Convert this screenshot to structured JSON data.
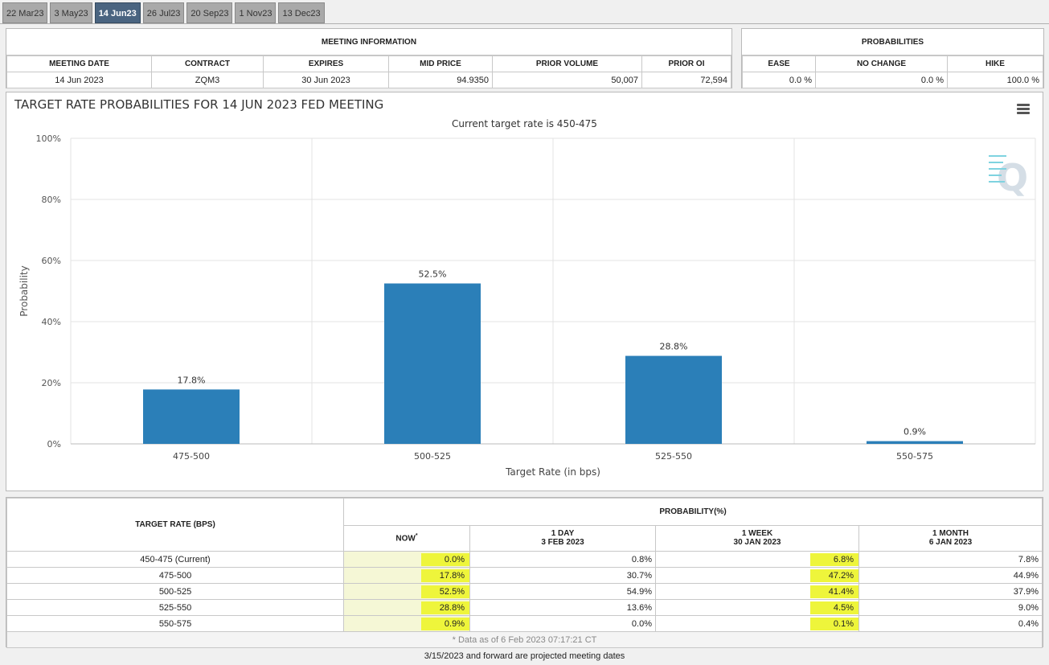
{
  "tabs": [
    {
      "label": "22 Mar23",
      "active": false
    },
    {
      "label": "3 May23",
      "active": false
    },
    {
      "label": "14 Jun23",
      "active": true
    },
    {
      "label": "26 Jul23",
      "active": false
    },
    {
      "label": "20 Sep23",
      "active": false
    },
    {
      "label": "1 Nov23",
      "active": false
    },
    {
      "label": "13 Dec23",
      "active": false
    }
  ],
  "meeting_info": {
    "title": "MEETING INFORMATION",
    "headers": [
      "MEETING DATE",
      "CONTRACT",
      "EXPIRES",
      "MID PRICE",
      "PRIOR VOLUME",
      "PRIOR OI"
    ],
    "values": [
      "14 Jun 2023",
      "ZQM3",
      "30 Jun 2023",
      "94.9350",
      "50,007",
      "72,594"
    ]
  },
  "probabilities": {
    "title": "PROBABILITIES",
    "headers": [
      "EASE",
      "NO CHANGE",
      "HIKE"
    ],
    "values": [
      "0.0 %",
      "0.0 %",
      "100.0 %"
    ]
  },
  "chart_data": {
    "type": "bar",
    "title": "TARGET RATE PROBABILITIES FOR 14 JUN 2023 FED MEETING",
    "subtitle": "Current target rate is 450-475",
    "categories": [
      "475-500",
      "500-525",
      "525-550",
      "550-575"
    ],
    "values": [
      17.8,
      52.5,
      28.8,
      0.9
    ],
    "data_labels": [
      "17.8%",
      "52.5%",
      "28.8%",
      "0.9%"
    ],
    "xlabel": "Target Rate (in bps)",
    "ylabel": "Probability",
    "ylim": [
      0,
      100
    ],
    "yticks": [
      "0%",
      "20%",
      "40%",
      "60%",
      "80%",
      "100%"
    ],
    "bar_color": "#2b7fb8",
    "grid": true,
    "legend": "none"
  },
  "prob_table": {
    "rate_header": "TARGET RATE (BPS)",
    "prob_header": "PROBABILITY(%)",
    "now_label": "NOW",
    "now_mark": "*",
    "col_1day": {
      "label": "1 DAY",
      "date": "3 FEB 2023"
    },
    "col_1week": {
      "label": "1 WEEK",
      "date": "30 JAN 2023"
    },
    "col_1month": {
      "label": "1 MONTH",
      "date": "6 JAN 2023"
    },
    "rows": [
      {
        "rate": "450-475 (Current)",
        "now": "0.0%",
        "day": "0.8%",
        "week": "6.8%",
        "month": "7.8%"
      },
      {
        "rate": "475-500",
        "now": "17.8%",
        "day": "30.7%",
        "week": "47.2%",
        "month": "44.9%"
      },
      {
        "rate": "500-525",
        "now": "52.5%",
        "day": "54.9%",
        "week": "41.4%",
        "month": "37.9%"
      },
      {
        "rate": "525-550",
        "now": "28.8%",
        "day": "13.6%",
        "week": "4.5%",
        "month": "9.0%"
      },
      {
        "rate": "550-575",
        "now": "0.9%",
        "day": "0.0%",
        "week": "0.1%",
        "month": "0.4%"
      }
    ],
    "footnote": "* Data as of 6 Feb 2023 07:17:21 CT"
  },
  "note": "3/15/2023 and forward are projected meeting dates",
  "highlight_color": "#eef53b"
}
